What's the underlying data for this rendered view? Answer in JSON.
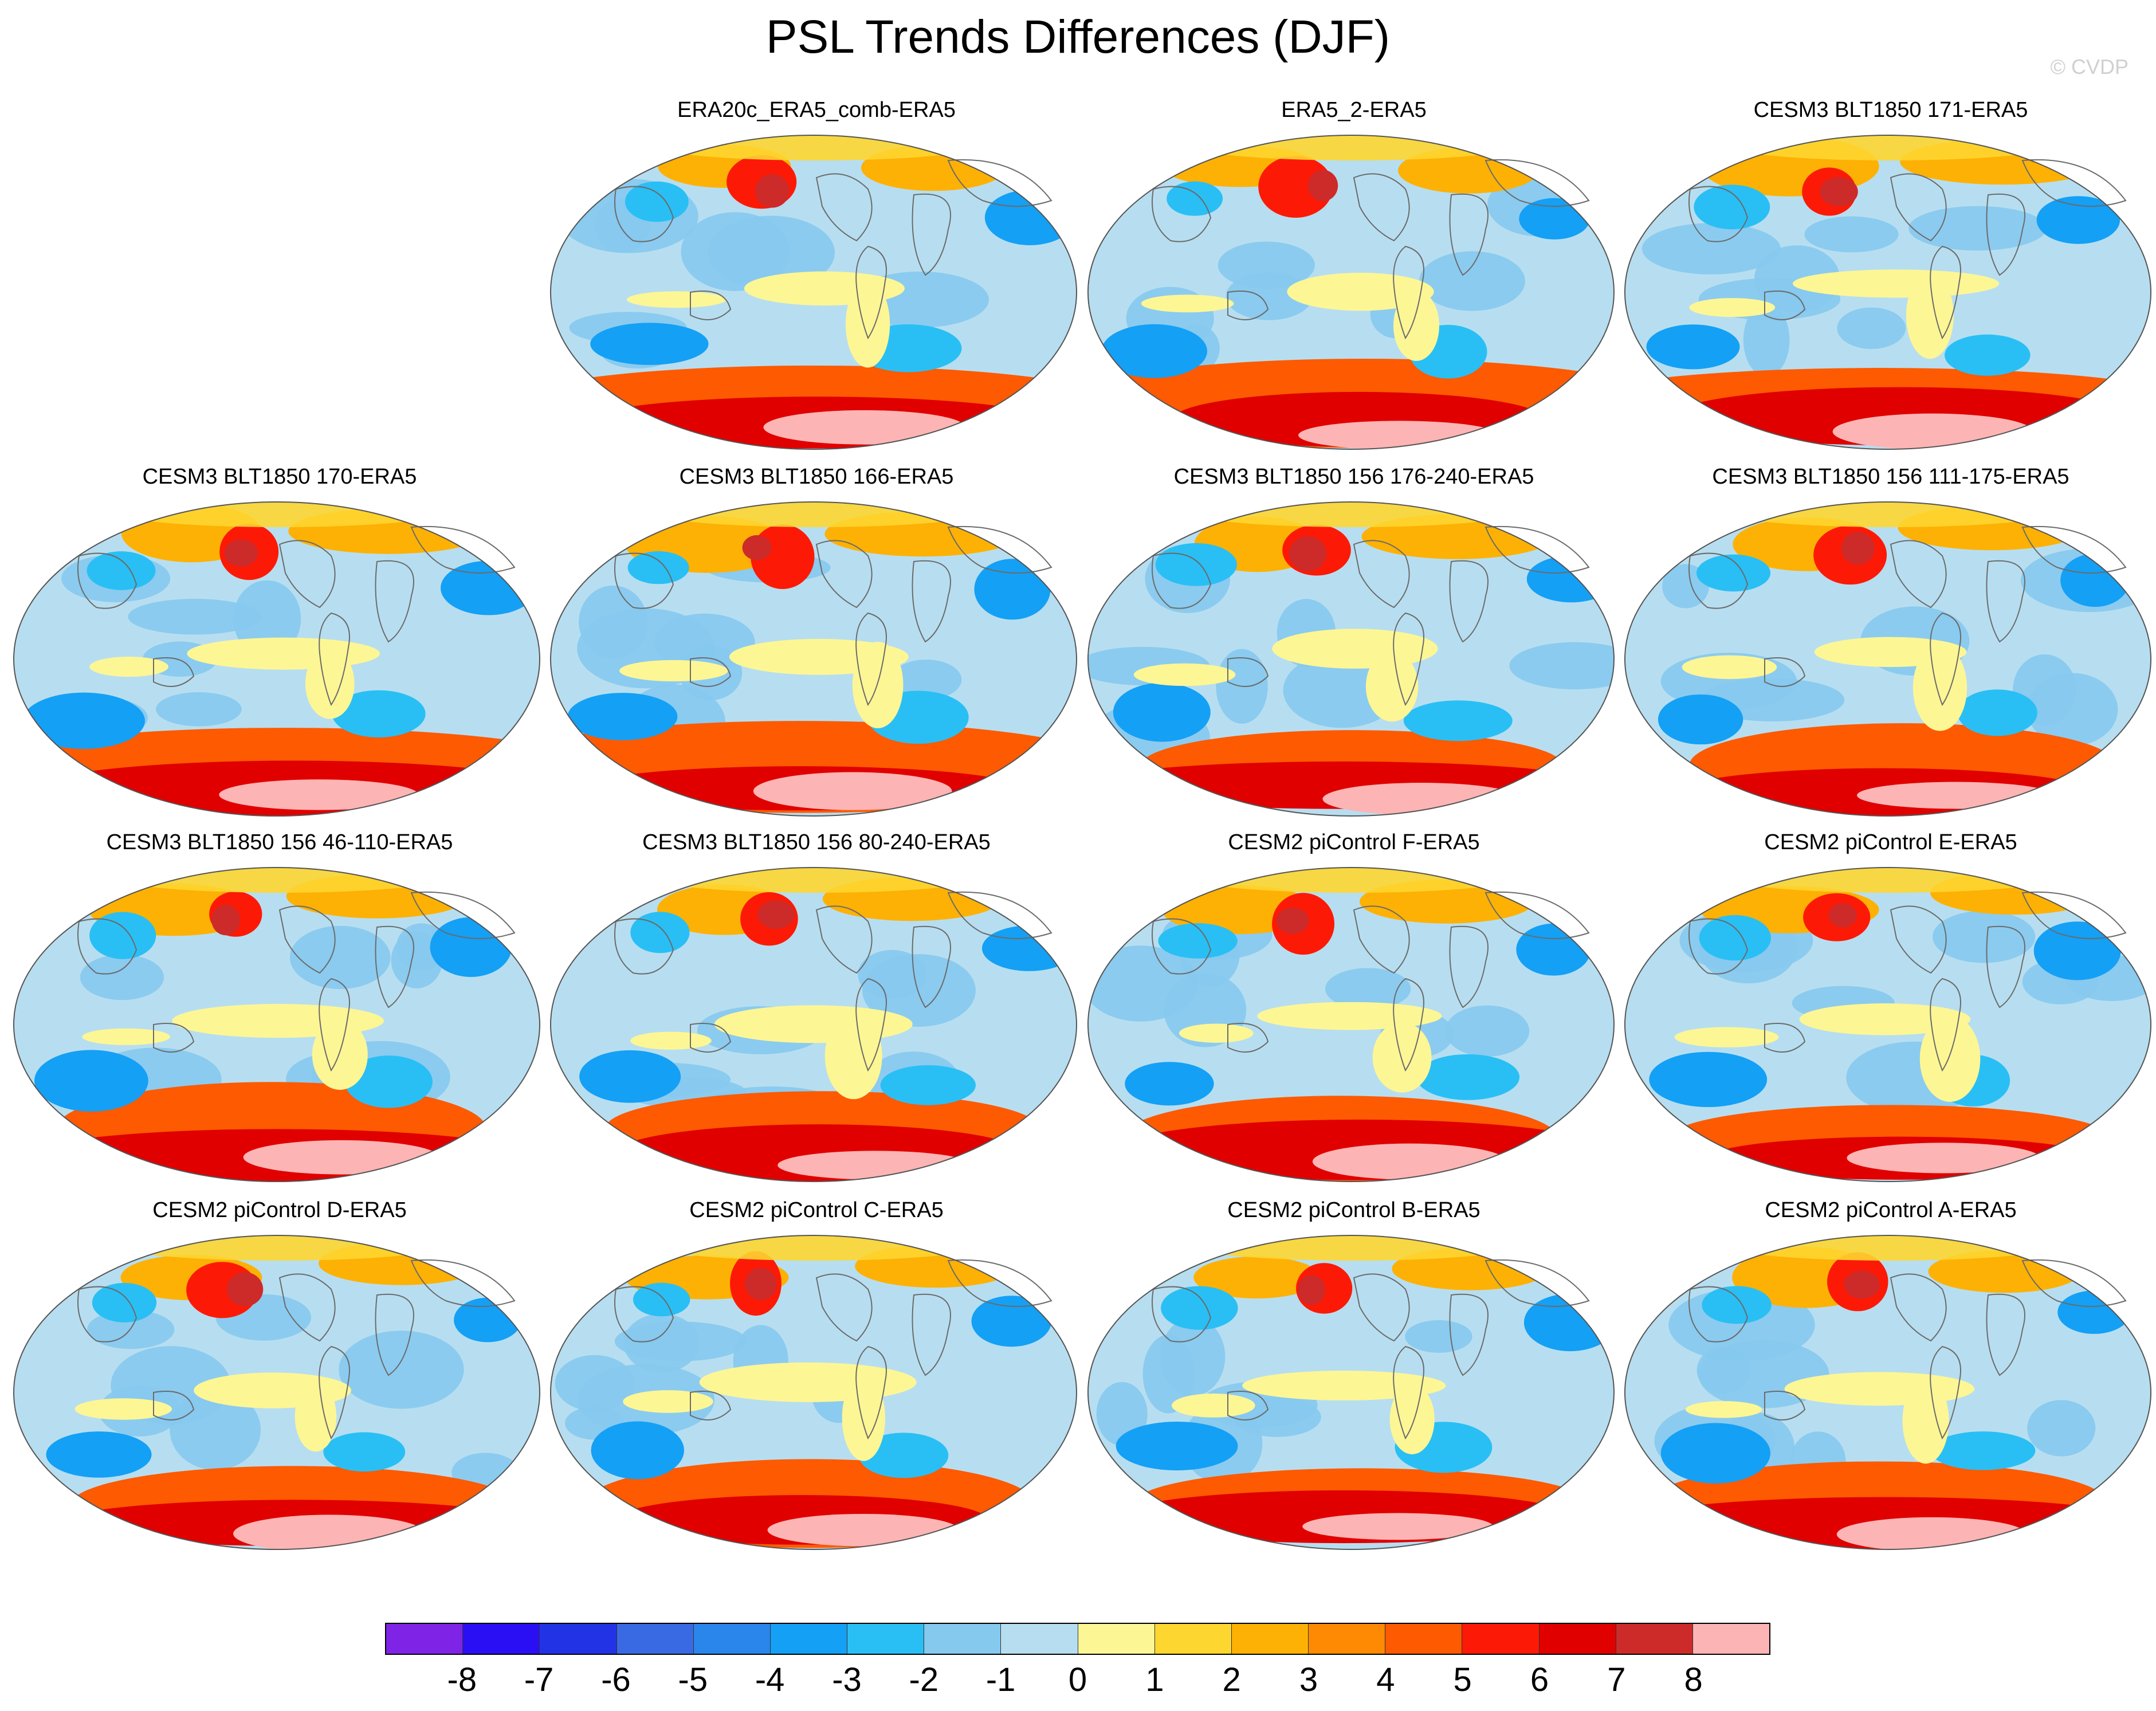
{
  "title": "PSL Trends Differences (DJF)",
  "credit": "© CVDP",
  "panels": [
    {
      "title": "ERA20c_ERA5_comb-ERA5"
    },
    {
      "title": "ERA5_2-ERA5"
    },
    {
      "title": "CESM3 BLT1850 171-ERA5"
    },
    {
      "title": "CESM3 BLT1850 170-ERA5"
    },
    {
      "title": "CESM3 BLT1850 166-ERA5"
    },
    {
      "title": "CESM3 BLT1850 156 176-240-ERA5"
    },
    {
      "title": "CESM3 BLT1850 156 111-175-ERA5"
    },
    {
      "title": "CESM3 BLT1850 156 46-110-ERA5"
    },
    {
      "title": "CESM3 BLT1850 156 80-240-ERA5"
    },
    {
      "title": "CESM2 piControl F-ERA5"
    },
    {
      "title": "CESM2 piControl E-ERA5"
    },
    {
      "title": "CESM2 piControl D-ERA5"
    },
    {
      "title": "CESM2 piControl C-ERA5"
    },
    {
      "title": "CESM2 piControl B-ERA5"
    },
    {
      "title": "CESM2 piControl A-ERA5"
    }
  ],
  "colorbar": {
    "labels": [
      "-8",
      "-7",
      "-6",
      "-5",
      "-4",
      "-3",
      "-2",
      "-1",
      "0",
      "1",
      "2",
      "3",
      "4",
      "5",
      "6",
      "7",
      "8"
    ],
    "colors": [
      "#7f24e6",
      "#2a0ff5",
      "#2233e6",
      "#3a6ae3",
      "#2b86ec",
      "#14a0f5",
      "#29bff5",
      "#86c9ee",
      "#b7def0",
      "#fdf695",
      "#fed630",
      "#fdb104",
      "#fd8a02",
      "#fd5a02",
      "#fc1a06",
      "#e00000",
      "#cd2a2a",
      "#fdb4b4"
    ]
  }
}
